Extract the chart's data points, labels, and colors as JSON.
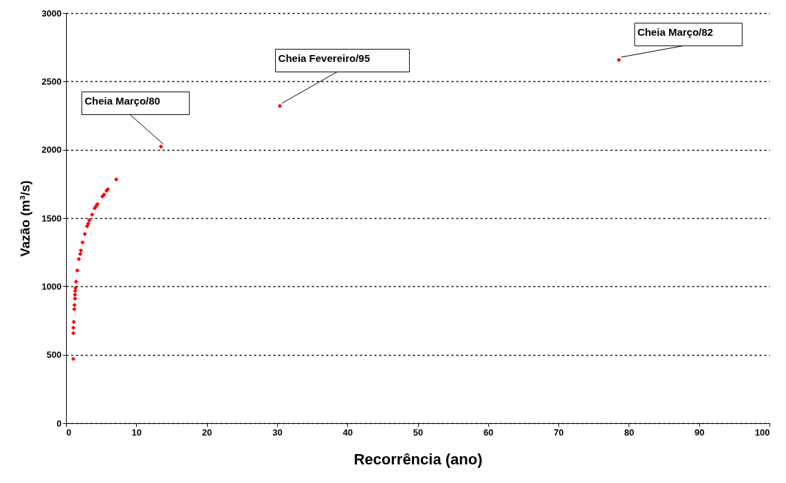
{
  "chart_data": {
    "type": "scatter",
    "xlabel": "Recorrência (ano)",
    "ylabel": "Vazão (m³/s)",
    "x": [
      1.04,
      1.04,
      1.04,
      1.11,
      1.17,
      1.2,
      1.27,
      1.27,
      1.3,
      1.37,
      1.43,
      1.6,
      1.83,
      2.02,
      2.12,
      2.35,
      2.67,
      3.0,
      3.16,
      3.32,
      3.71,
      4.07,
      4.3,
      4.46,
      5.18,
      5.41,
      5.77,
      5.93,
      7.14,
      13.5,
      30.4,
      78.6
    ],
    "series": [
      {
        "color": "#ff0000",
        "values": [
          470,
          658,
          698,
          741,
          834,
          864,
          911,
          940,
          968,
          990,
          1035,
          1117,
          1200,
          1238,
          1263,
          1322,
          1384,
          1441,
          1460,
          1485,
          1525,
          1572,
          1589,
          1602,
          1658,
          1673,
          1700,
          1711,
          1783,
          2023,
          2320,
          2657
        ]
      }
    ],
    "xlim": [
      0,
      100
    ],
    "xticks": [
      0,
      10,
      20,
      30,
      40,
      50,
      60,
      70,
      80,
      90,
      100
    ],
    "ylim": [
      0,
      3000
    ],
    "yticks": [
      0,
      500,
      1000,
      1500,
      2000,
      2500,
      3000
    ],
    "grid": "y",
    "marker": "diamond",
    "annotations": [
      {
        "text": "Cheia Março/80",
        "x": 13.5,
        "y": 2023
      },
      {
        "text": "Cheia Fevereiro/95",
        "x": 30.4,
        "y": 2320
      },
      {
        "text": "Cheia Março/82",
        "x": 78.6,
        "y": 2657
      }
    ]
  }
}
